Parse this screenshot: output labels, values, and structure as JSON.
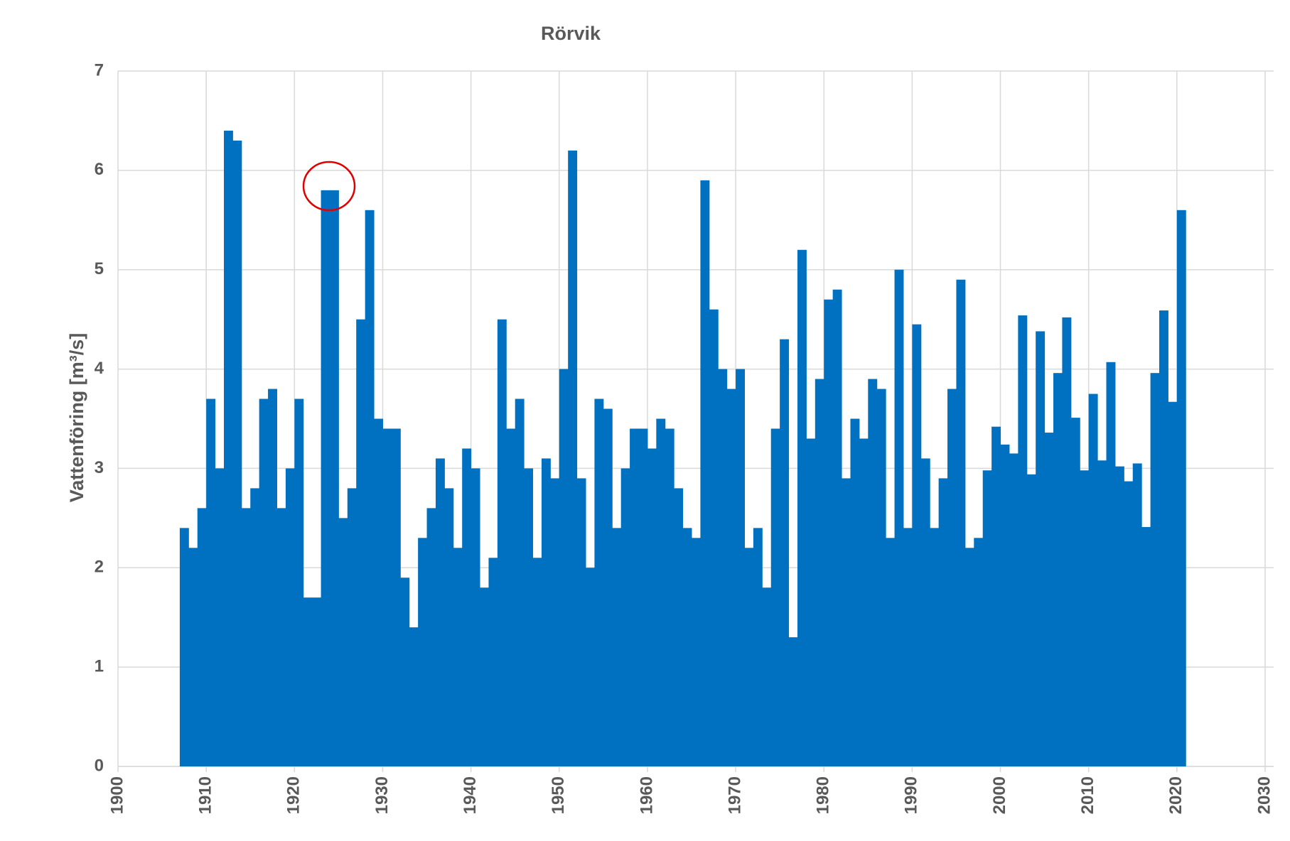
{
  "chart_data": {
    "type": "bar",
    "title": "Rörvik",
    "y_label": "Vattenföring [m³/s]",
    "x": [
      1907,
      1908,
      1909,
      1910,
      1911,
      1912,
      1913,
      1914,
      1915,
      1916,
      1917,
      1918,
      1919,
      1920,
      1921,
      1922,
      1923,
      1924,
      1925,
      1926,
      1927,
      1928,
      1929,
      1930,
      1931,
      1932,
      1933,
      1934,
      1935,
      1936,
      1937,
      1938,
      1939,
      1940,
      1941,
      1942,
      1943,
      1944,
      1945,
      1946,
      1947,
      1948,
      1949,
      1950,
      1951,
      1952,
      1953,
      1954,
      1955,
      1956,
      1957,
      1958,
      1959,
      1960,
      1961,
      1962,
      1963,
      1964,
      1965,
      1966,
      1967,
      1968,
      1969,
      1970,
      1971,
      1972,
      1973,
      1974,
      1975,
      1976,
      1977,
      1978,
      1979,
      1980,
      1981,
      1982,
      1983,
      1984,
      1985,
      1986,
      1987,
      1988,
      1989,
      1990,
      1991,
      1992,
      1993,
      1994,
      1995,
      1996,
      1997,
      1998,
      1999,
      2000,
      2001,
      2002,
      2003,
      2004,
      2005,
      2006,
      2007,
      2008,
      2009,
      2010,
      2011,
      2012,
      2013,
      2014,
      2015,
      2016,
      2017,
      2018,
      2019,
      2020
    ],
    "values": [
      2.4,
      2.2,
      2.6,
      3.7,
      3.0,
      6.4,
      6.3,
      2.6,
      2.8,
      3.7,
      3.8,
      2.6,
      3.0,
      3.7,
      1.7,
      1.7,
      5.8,
      5.8,
      2.5,
      2.8,
      4.5,
      5.6,
      3.5,
      3.4,
      3.4,
      1.9,
      1.4,
      2.3,
      2.6,
      3.1,
      2.8,
      2.2,
      3.2,
      3.0,
      1.8,
      2.1,
      4.5,
      3.4,
      3.7,
      3.0,
      2.1,
      3.1,
      2.9,
      4.0,
      6.2,
      2.9,
      2.0,
      3.7,
      3.6,
      2.4,
      3.0,
      3.4,
      3.4,
      3.2,
      3.5,
      3.4,
      2.8,
      2.4,
      2.3,
      5.9,
      4.6,
      4.0,
      3.8,
      4.0,
      2.2,
      2.4,
      1.8,
      3.4,
      4.3,
      1.3,
      5.2,
      3.3,
      3.9,
      4.7,
      4.8,
      2.9,
      3.5,
      3.3,
      3.9,
      3.8,
      2.3,
      5.0,
      2.4,
      4.45,
      3.1,
      2.4,
      2.9,
      3.8,
      4.9,
      2.2,
      2.3,
      2.98,
      3.42,
      3.24,
      3.15,
      4.54,
      2.94,
      4.38,
      3.36,
      3.96,
      4.52,
      3.51,
      2.98,
      3.75,
      3.08,
      4.07,
      3.02,
      2.87,
      3.05,
      2.41,
      3.96,
      4.59,
      3.67,
      5.6
    ],
    "color": "#0070c0",
    "xlim": [
      1900,
      2030
    ],
    "xticks": [
      1900,
      1910,
      1920,
      1930,
      1940,
      1950,
      1960,
      1970,
      1980,
      1990,
      2000,
      2010,
      2020,
      2030
    ],
    "ylim": [
      0,
      7
    ],
    "yticks": [
      0,
      1,
      2,
      3,
      4,
      5,
      6,
      7
    ],
    "grid": true
  }
}
